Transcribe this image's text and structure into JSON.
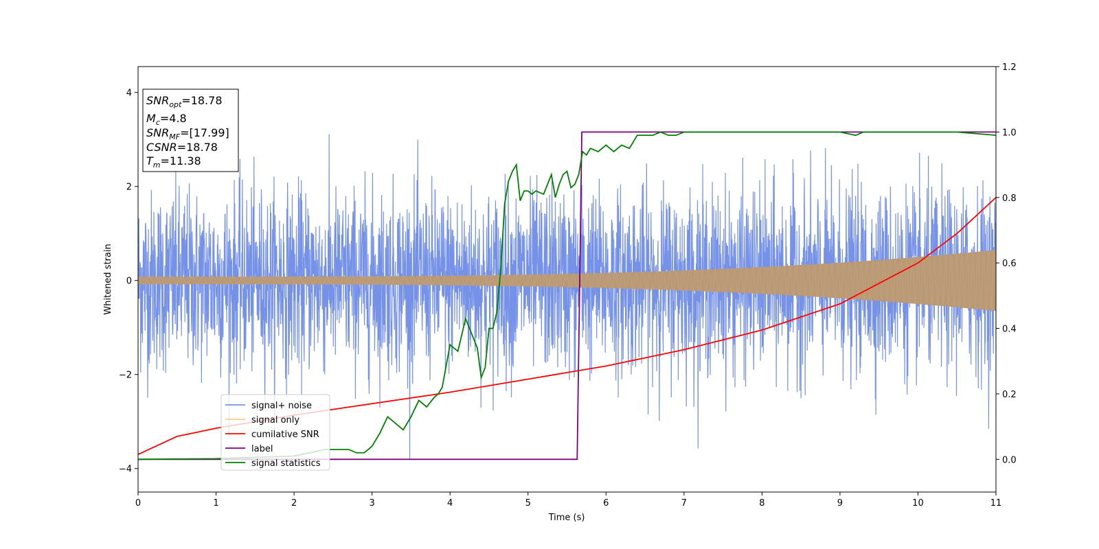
{
  "chart_data": {
    "type": "line",
    "xlabel": "Time (s)",
    "ylabel": "Whitened strain",
    "xlim": [
      0,
      11
    ],
    "ylim": [
      -4.5,
      4.55
    ],
    "y2lim": [
      -0.1,
      1.2
    ],
    "grid": false,
    "x_ticks": [
      0,
      1,
      2,
      3,
      4,
      5,
      6,
      7,
      8,
      9,
      10,
      11
    ],
    "y_ticks": [
      -4,
      -2,
      0,
      2,
      4
    ],
    "y2_ticks": [
      "0.0",
      "0.2",
      "0.4",
      "0.6",
      "0.8",
      "1.0",
      "1.2"
    ],
    "legend_position": "lower-left",
    "info_box": {
      "lines": [
        {
          "main": "SNR",
          "sub": "opt",
          "rest": "=18.78"
        },
        {
          "main": "M",
          "sub": "c",
          "rest": "=4.8"
        },
        {
          "main": "SNR",
          "sub": "MF",
          "rest": "=[17.99]"
        },
        {
          "main": "CSNR",
          "sub": "",
          "rest": "=18.78"
        },
        {
          "main": "T",
          "sub": "m",
          "rest": "=11.38"
        }
      ]
    },
    "series": [
      {
        "name": "signal+ noise",
        "axis": "left",
        "color": "#7592e8",
        "kind": "noise",
        "sigma": 0.95,
        "approx_extent": [
          -4.0,
          4.2
        ]
      },
      {
        "name": "signal only",
        "axis": "left",
        "color": "#ffb347",
        "kind": "chirp",
        "amplitude_start": 0.08,
        "amplitude_end": 0.65,
        "fill_color": "#b99a78"
      },
      {
        "name": "cumilative SNR",
        "axis": "right",
        "color": "#ff0000",
        "x": [
          0,
          0.5,
          1,
          2,
          3,
          4,
          5,
          6,
          7,
          8,
          9,
          10,
          10.5,
          11
        ],
        "y": [
          0.015,
          0.07,
          0.095,
          0.135,
          0.17,
          0.205,
          0.245,
          0.285,
          0.335,
          0.395,
          0.475,
          0.6,
          0.69,
          0.8
        ]
      },
      {
        "name": "label",
        "axis": "right",
        "color": "#800080",
        "x": [
          0,
          5.63,
          5.69,
          11
        ],
        "y": [
          0.0,
          0.0,
          1.0,
          1.0
        ]
      },
      {
        "name": "signal statistics",
        "axis": "right",
        "color": "#008000",
        "x": [
          0,
          1,
          2.0,
          2.4,
          2.7,
          2.8,
          2.9,
          3.0,
          3.1,
          3.2,
          3.3,
          3.4,
          3.5,
          3.6,
          3.7,
          3.8,
          3.85,
          3.9,
          4.0,
          4.1,
          4.2,
          4.3,
          4.35,
          4.4,
          4.45,
          4.5,
          4.55,
          4.6,
          4.65,
          4.7,
          4.75,
          4.8,
          4.85,
          4.9,
          4.95,
          5.0,
          5.05,
          5.1,
          5.2,
          5.3,
          5.35,
          5.4,
          5.45,
          5.5,
          5.55,
          5.6,
          5.65,
          5.7,
          5.75,
          5.8,
          5.9,
          6.0,
          6.1,
          6.2,
          6.3,
          6.4,
          6.5,
          6.6,
          6.7,
          6.8,
          6.9,
          7.0,
          7.2,
          7.5,
          8.0,
          8.5,
          9.0,
          9.2,
          9.3,
          9.5,
          9.6,
          10.0,
          10.5,
          11.0
        ],
        "y": [
          0.0,
          0.002,
          0.01,
          0.03,
          0.03,
          0.02,
          0.02,
          0.04,
          0.08,
          0.13,
          0.11,
          0.09,
          0.13,
          0.18,
          0.16,
          0.19,
          0.2,
          0.22,
          0.35,
          0.33,
          0.43,
          0.37,
          0.34,
          0.25,
          0.28,
          0.4,
          0.4,
          0.45,
          0.58,
          0.78,
          0.85,
          0.88,
          0.9,
          0.79,
          0.82,
          0.82,
          0.81,
          0.82,
          0.81,
          0.87,
          0.8,
          0.84,
          0.87,
          0.88,
          0.83,
          0.84,
          0.87,
          0.94,
          0.93,
          0.95,
          0.94,
          0.96,
          0.94,
          0.96,
          0.95,
          0.99,
          0.99,
          0.99,
          1.0,
          0.99,
          0.99,
          1.0,
          1.0,
          1.0,
          1.0,
          1.0,
          1.0,
          0.99,
          1.0,
          1.0,
          1.0,
          1.0,
          1.0,
          0.99
        ]
      }
    ]
  }
}
